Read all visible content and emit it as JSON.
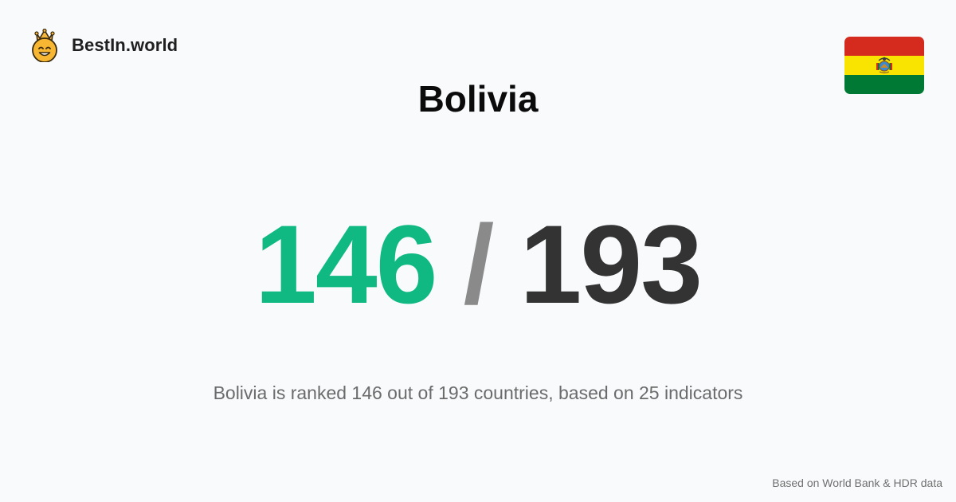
{
  "brand": {
    "logo_icon": "crowned-smiley-icon",
    "name": "BestIn.world"
  },
  "country": {
    "name": "Bolivia",
    "flag_icon": "bolivia-flag-icon",
    "flag_colors": [
      "#d52b1e",
      "#f9e300",
      "#007934"
    ]
  },
  "ranking": {
    "rank": "146",
    "separator": "/",
    "total": "193",
    "summary": "Bolivia is ranked 146 out of 193 countries, based on 25 indicators"
  },
  "footer": {
    "source": "Based on World Bank & HDR data"
  },
  "colors": {
    "rank": "#10b981",
    "separator": "#8a8a8a",
    "total": "#333333",
    "background": "#f8fafc"
  }
}
